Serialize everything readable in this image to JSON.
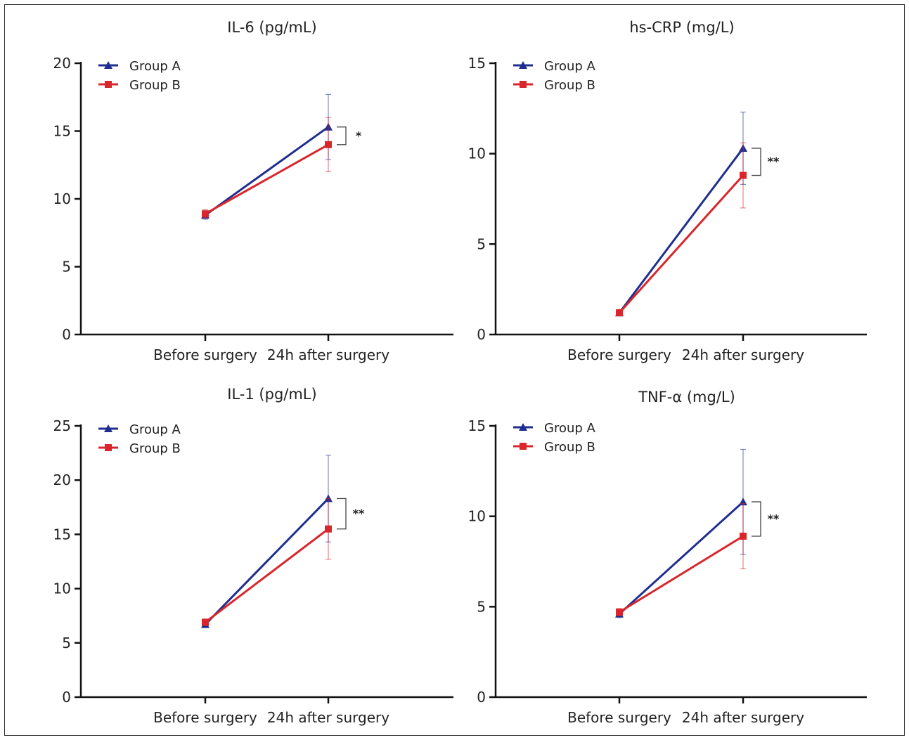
{
  "colors": {
    "group_a": "#1f2f8f",
    "group_b": "#d8262c",
    "axis": "#111111"
  },
  "chart_data": [
    {
      "type": "line",
      "title": "IL-6 (pg/mL)",
      "categories": [
        "Before surgery",
        "24h after surgery"
      ],
      "ylim": [
        0,
        20
      ],
      "yticks": [
        0,
        5,
        10,
        15,
        20
      ],
      "legend": "top-left",
      "grid": false,
      "series": [
        {
          "name": "Group A",
          "marker": "triangle",
          "values": [
            8.8,
            15.3
          ],
          "errors": [
            0.3,
            2.4
          ]
        },
        {
          "name": "Group B",
          "marker": "square",
          "values": [
            8.9,
            14.0
          ],
          "errors": [
            0.3,
            2.0
          ]
        }
      ],
      "significance": "*"
    },
    {
      "type": "line",
      "title": "hs-CRP (mg/L)",
      "categories": [
        "Before surgery",
        "24h after surgery"
      ],
      "ylim": [
        0,
        15
      ],
      "yticks": [
        0,
        5,
        10,
        15
      ],
      "legend": "top-left",
      "grid": false,
      "series": [
        {
          "name": "Group A",
          "marker": "triangle",
          "values": [
            1.2,
            10.3
          ],
          "errors": [
            0.1,
            2.0
          ]
        },
        {
          "name": "Group B",
          "marker": "square",
          "values": [
            1.2,
            8.8
          ],
          "errors": [
            0.1,
            1.8
          ]
        }
      ],
      "significance": "**"
    },
    {
      "type": "line",
      "title": "IL-1 (pg/mL)",
      "categories": [
        "Before surgery",
        "24h after surgery"
      ],
      "ylim": [
        0,
        25
      ],
      "yticks": [
        0,
        5,
        10,
        15,
        20,
        25
      ],
      "legend": "top-left",
      "grid": false,
      "series": [
        {
          "name": "Group A",
          "marker": "triangle",
          "values": [
            6.7,
            18.3
          ],
          "errors": [
            0.3,
            4.0
          ]
        },
        {
          "name": "Group B",
          "marker": "square",
          "values": [
            6.9,
            15.5
          ],
          "errors": [
            0.3,
            2.8
          ]
        }
      ],
      "significance": "**"
    },
    {
      "type": "line",
      "title": "TNF-α (mg/L)",
      "categories": [
        "Before surgery",
        "24h after surgery"
      ],
      "ylim": [
        0,
        15
      ],
      "yticks": [
        0,
        5,
        10,
        15
      ],
      "legend": "top-left",
      "grid": false,
      "series": [
        {
          "name": "Group A",
          "marker": "triangle",
          "values": [
            4.6,
            10.8
          ],
          "errors": [
            0.2,
            2.9
          ]
        },
        {
          "name": "Group B",
          "marker": "square",
          "values": [
            4.7,
            8.9
          ],
          "errors": [
            0.2,
            1.8
          ]
        }
      ],
      "significance": "**"
    }
  ]
}
